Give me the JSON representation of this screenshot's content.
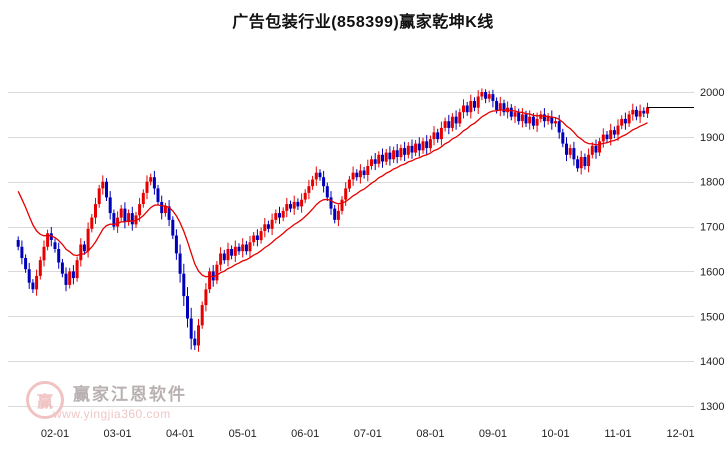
{
  "title": "广告包装行业(858399)赢家乾坤K线",
  "watermark": {
    "logo_glyph": "赢",
    "brand": "赢家江恩软件",
    "url": "www.yingjia360.com",
    "logo_color": "#f0c2c2",
    "brand_color": "#b9b1b1",
    "url_color": "#f0c6c6"
  },
  "chart_data": {
    "type": "candlestick",
    "title": "广告包装行业(858399)赢家乾坤K线",
    "ylim": [
      1300,
      2000
    ],
    "y_ticks": [
      2000,
      1900,
      1800,
      1700,
      1600,
      1500,
      1400,
      1300
    ],
    "x_ticks": [
      "02-01",
      "03-01",
      "04-01",
      "05-01",
      "06-01",
      "07-01",
      "08-01",
      "09-01",
      "10-01",
      "11-01",
      "12-01"
    ],
    "x_tick_candle_indices": [
      10,
      27,
      44,
      61,
      78,
      95,
      112,
      129,
      146,
      163,
      180
    ],
    "grid": true,
    "legend": false,
    "colors": {
      "up": "#e60000",
      "down": "#0000bb",
      "grid": "#d9d9d9",
      "axis_text": "#222222",
      "background": "#ffffff"
    },
    "overlays": {
      "ma": {
        "type": "ema",
        "period": 16,
        "seed": 1795,
        "color": "#e60000"
      },
      "last_price_line": {
        "value": 1966,
        "color": "#000000"
      }
    },
    "candles": [
      [
        1670,
        1678,
        1647,
        1655
      ],
      [
        1655,
        1669,
        1616,
        1630
      ],
      [
        1630,
        1638,
        1597,
        1605
      ],
      [
        1605,
        1619,
        1561,
        1575
      ],
      [
        1575,
        1583,
        1552,
        1560
      ],
      [
        1560,
        1604,
        1546,
        1590
      ],
      [
        1590,
        1633,
        1582,
        1625
      ],
      [
        1625,
        1669,
        1611,
        1655
      ],
      [
        1655,
        1693,
        1647,
        1685
      ],
      [
        1685,
        1699,
        1656,
        1670
      ],
      [
        1665,
        1673,
        1642,
        1650
      ],
      [
        1650,
        1664,
        1606,
        1620
      ],
      [
        1620,
        1628,
        1587,
        1595
      ],
      [
        1595,
        1609,
        1556,
        1570
      ],
      [
        1570,
        1608,
        1562,
        1600
      ],
      [
        1600,
        1614,
        1571,
        1585
      ],
      [
        1585,
        1633,
        1577,
        1625
      ],
      [
        1625,
        1674,
        1611,
        1660
      ],
      [
        1660,
        1668,
        1637,
        1645
      ],
      [
        1645,
        1709,
        1631,
        1695
      ],
      [
        1695,
        1728,
        1687,
        1720
      ],
      [
        1720,
        1764,
        1706,
        1750
      ],
      [
        1750,
        1793,
        1742,
        1785
      ],
      [
        1785,
        1814,
        1771,
        1800
      ],
      [
        1800,
        1808,
        1757,
        1765
      ],
      [
        1765,
        1779,
        1716,
        1730
      ],
      [
        1730,
        1738,
        1692,
        1700
      ],
      [
        1700,
        1734,
        1686,
        1720
      ],
      [
        1720,
        1748,
        1712,
        1740
      ],
      [
        1740,
        1754,
        1696,
        1710
      ],
      [
        1710,
        1738,
        1702,
        1730
      ],
      [
        1730,
        1744,
        1691,
        1705
      ],
      [
        1705,
        1733,
        1697,
        1725
      ],
      [
        1725,
        1764,
        1711,
        1750
      ],
      [
        1750,
        1783,
        1742,
        1775
      ],
      [
        1775,
        1814,
        1761,
        1800
      ],
      [
        1800,
        1818,
        1792,
        1810
      ],
      [
        1810,
        1824,
        1771,
        1785
      ],
      [
        1785,
        1793,
        1747,
        1755
      ],
      [
        1755,
        1769,
        1716,
        1730
      ],
      [
        1730,
        1753,
        1722,
        1745
      ],
      [
        1745,
        1759,
        1701,
        1715
      ],
      [
        1715,
        1723,
        1672,
        1680
      ],
      [
        1680,
        1694,
        1626,
        1640
      ],
      [
        1640,
        1660,
        1575,
        1595
      ],
      [
        1595,
        1617,
        1523,
        1545
      ],
      [
        1545,
        1565,
        1475,
        1495
      ],
      [
        1495,
        1519,
        1426,
        1450
      ],
      [
        1450,
        1468,
        1425,
        1435
      ],
      [
        1435,
        1494,
        1421,
        1480
      ],
      [
        1480,
        1533,
        1472,
        1525
      ],
      [
        1525,
        1574,
        1511,
        1560
      ],
      [
        1560,
        1608,
        1552,
        1600
      ],
      [
        1600,
        1614,
        1566,
        1580
      ],
      [
        1580,
        1623,
        1572,
        1615
      ],
      [
        1615,
        1654,
        1601,
        1640
      ],
      [
        1640,
        1648,
        1617,
        1625
      ],
      [
        1625,
        1664,
        1611,
        1650
      ],
      [
        1650,
        1658,
        1627,
        1635
      ],
      [
        1635,
        1669,
        1621,
        1655
      ],
      [
        1655,
        1663,
        1637,
        1645
      ],
      [
        1645,
        1674,
        1631,
        1660
      ],
      [
        1660,
        1668,
        1637,
        1645
      ],
      [
        1645,
        1679,
        1631,
        1665
      ],
      [
        1665,
        1688,
        1657,
        1680
      ],
      [
        1680,
        1694,
        1656,
        1670
      ],
      [
        1670,
        1698,
        1662,
        1690
      ],
      [
        1690,
        1719,
        1676,
        1705
      ],
      [
        1705,
        1713,
        1687,
        1695
      ],
      [
        1695,
        1729,
        1681,
        1715
      ],
      [
        1715,
        1738,
        1707,
        1730
      ],
      [
        1730,
        1744,
        1706,
        1720
      ],
      [
        1720,
        1743,
        1712,
        1735
      ],
      [
        1735,
        1764,
        1721,
        1750
      ],
      [
        1750,
        1758,
        1732,
        1740
      ],
      [
        1740,
        1769,
        1726,
        1755
      ],
      [
        1755,
        1763,
        1737,
        1745
      ],
      [
        1745,
        1774,
        1731,
        1760
      ],
      [
        1760,
        1783,
        1752,
        1775
      ],
      [
        1775,
        1804,
        1761,
        1790
      ],
      [
        1790,
        1813,
        1782,
        1805
      ],
      [
        1805,
        1834,
        1791,
        1820
      ],
      [
        1820,
        1828,
        1802,
        1810
      ],
      [
        1810,
        1824,
        1776,
        1790
      ],
      [
        1790,
        1798,
        1757,
        1765
      ],
      [
        1765,
        1779,
        1726,
        1740
      ],
      [
        1740,
        1748,
        1707,
        1715
      ],
      [
        1715,
        1749,
        1701,
        1735
      ],
      [
        1735,
        1768,
        1727,
        1760
      ],
      [
        1760,
        1799,
        1746,
        1785
      ],
      [
        1785,
        1813,
        1777,
        1805
      ],
      [
        1805,
        1834,
        1791,
        1820
      ],
      [
        1820,
        1828,
        1802,
        1810
      ],
      [
        1810,
        1839,
        1796,
        1825
      ],
      [
        1825,
        1833,
        1807,
        1815
      ],
      [
        1815,
        1849,
        1801,
        1835
      ],
      [
        1835,
        1858,
        1827,
        1850
      ],
      [
        1850,
        1864,
        1826,
        1840
      ],
      [
        1840,
        1868,
        1832,
        1860
      ],
      [
        1860,
        1874,
        1831,
        1845
      ],
      [
        1845,
        1873,
        1837,
        1865
      ],
      [
        1865,
        1879,
        1836,
        1850
      ],
      [
        1850,
        1878,
        1842,
        1870
      ],
      [
        1870,
        1884,
        1841,
        1855
      ],
      [
        1855,
        1883,
        1847,
        1875
      ],
      [
        1875,
        1889,
        1846,
        1860
      ],
      [
        1860,
        1888,
        1852,
        1880
      ],
      [
        1880,
        1894,
        1851,
        1865
      ],
      [
        1865,
        1893,
        1857,
        1885
      ],
      [
        1885,
        1899,
        1856,
        1870
      ],
      [
        1870,
        1898,
        1862,
        1890
      ],
      [
        1890,
        1904,
        1861,
        1875
      ],
      [
        1875,
        1903,
        1867,
        1895
      ],
      [
        1895,
        1924,
        1881,
        1910
      ],
      [
        1910,
        1918,
        1887,
        1895
      ],
      [
        1895,
        1934,
        1881,
        1920
      ],
      [
        1920,
        1943,
        1912,
        1935
      ],
      [
        1935,
        1949,
        1906,
        1920
      ],
      [
        1920,
        1953,
        1912,
        1945
      ],
      [
        1945,
        1959,
        1916,
        1930
      ],
      [
        1930,
        1963,
        1922,
        1955
      ],
      [
        1955,
        1984,
        1941,
        1970
      ],
      [
        1970,
        1978,
        1947,
        1955
      ],
      [
        1955,
        1994,
        1941,
        1980
      ],
      [
        1980,
        1988,
        1957,
        1965
      ],
      [
        1965,
        2004,
        1951,
        1990
      ],
      [
        1990,
        2008,
        1982,
        2000
      ],
      [
        2000,
        2006,
        1975,
        1985
      ],
      [
        1985,
        2003,
        1977,
        1995
      ],
      [
        1995,
        2005,
        1966,
        1980
      ],
      [
        1980,
        1988,
        1952,
        1960
      ],
      [
        1960,
        1989,
        1946,
        1975
      ],
      [
        1975,
        1983,
        1947,
        1955
      ],
      [
        1955,
        1979,
        1941,
        1965
      ],
      [
        1965,
        1973,
        1937,
        1945
      ],
      [
        1945,
        1969,
        1931,
        1955
      ],
      [
        1955,
        1963,
        1927,
        1935
      ],
      [
        1935,
        1964,
        1921,
        1950
      ],
      [
        1950,
        1958,
        1922,
        1930
      ],
      [
        1930,
        1959,
        1916,
        1945
      ],
      [
        1945,
        1953,
        1917,
        1925
      ],
      [
        1925,
        1954,
        1911,
        1940
      ],
      [
        1940,
        1958,
        1932,
        1950
      ],
      [
        1950,
        1964,
        1921,
        1935
      ],
      [
        1935,
        1953,
        1927,
        1945
      ],
      [
        1945,
        1959,
        1916,
        1930
      ],
      [
        1930,
        1943,
        1922,
        1935
      ],
      [
        1935,
        1949,
        1896,
        1910
      ],
      [
        1910,
        1918,
        1877,
        1885
      ],
      [
        1885,
        1899,
        1846,
        1860
      ],
      [
        1860,
        1883,
        1852,
        1875
      ],
      [
        1875,
        1889,
        1836,
        1850
      ],
      [
        1850,
        1858,
        1822,
        1830
      ],
      [
        1830,
        1869,
        1816,
        1855
      ],
      [
        1855,
        1863,
        1827,
        1835
      ],
      [
        1835,
        1874,
        1821,
        1860
      ],
      [
        1860,
        1888,
        1852,
        1880
      ],
      [
        1880,
        1894,
        1851,
        1865
      ],
      [
        1865,
        1898,
        1857,
        1890
      ],
      [
        1890,
        1919,
        1876,
        1905
      ],
      [
        1905,
        1913,
        1887,
        1895
      ],
      [
        1895,
        1929,
        1881,
        1915
      ],
      [
        1915,
        1923,
        1897,
        1905
      ],
      [
        1905,
        1939,
        1891,
        1925
      ],
      [
        1925,
        1948,
        1917,
        1940
      ],
      [
        1940,
        1954,
        1916,
        1930
      ],
      [
        1930,
        1958,
        1922,
        1950
      ],
      [
        1950,
        1974,
        1936,
        1960
      ],
      [
        1960,
        1968,
        1937,
        1945
      ],
      [
        1945,
        1972,
        1931,
        1958
      ],
      [
        1958,
        1966,
        1944,
        1952
      ],
      [
        1952,
        1976,
        1942,
        1966
      ]
    ]
  }
}
